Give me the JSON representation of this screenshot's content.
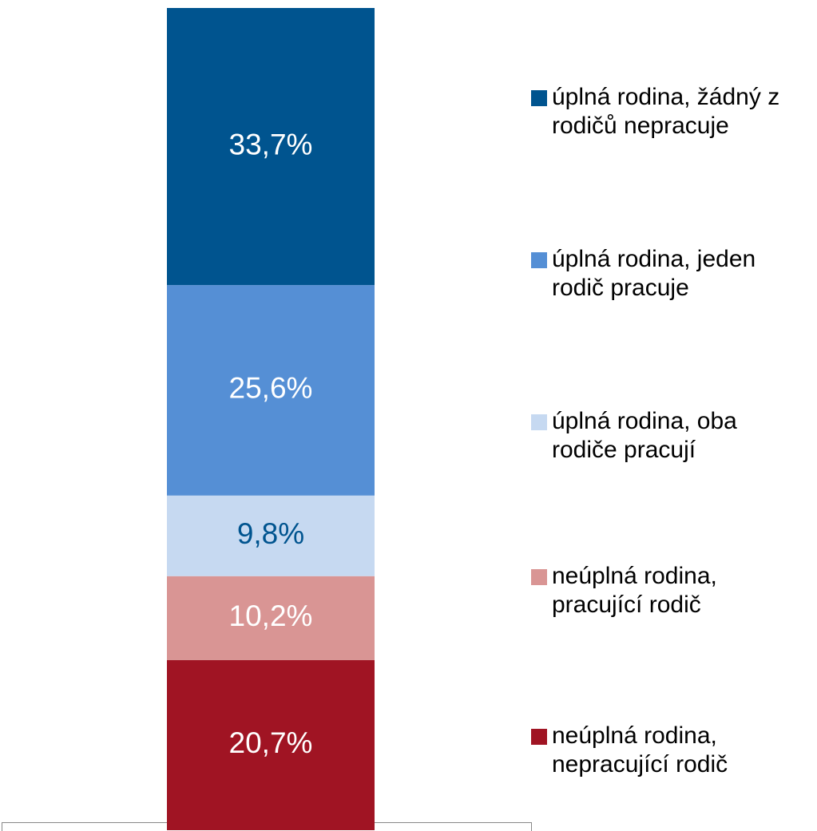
{
  "chart_data": {
    "type": "stacked_bar",
    "categories": [
      null
    ],
    "ylim": [
      0,
      100
    ],
    "series": [
      {
        "name": "neúplná rodina, nepracující rodič",
        "color": "#a01423",
        "label_color": "#ffffff",
        "values": [
          20.7
        ],
        "value_labels": [
          "20,7%"
        ]
      },
      {
        "name": "neúplná rodina, pracující rodič",
        "color": "#d99594",
        "label_color": "#ffffff",
        "values": [
          10.2
        ],
        "value_labels": [
          "10,2%"
        ]
      },
      {
        "name": "úplná rodina, oba rodiče pracují",
        "color": "#c6d9f1",
        "label_color": "#00548f",
        "values": [
          9.8
        ],
        "value_labels": [
          "9,8%"
        ]
      },
      {
        "name": "úplná rodina, jeden rodič pracuje",
        "color": "#558fd5",
        "label_color": "#ffffff",
        "values": [
          25.6
        ],
        "value_labels": [
          "25,6%"
        ]
      },
      {
        "name": "úplná rodina, žádný z rodičů nepracuje",
        "color": "#00548f",
        "label_color": "#ffffff",
        "values": [
          33.7
        ],
        "value_labels": [
          "33,7%"
        ]
      }
    ]
  }
}
